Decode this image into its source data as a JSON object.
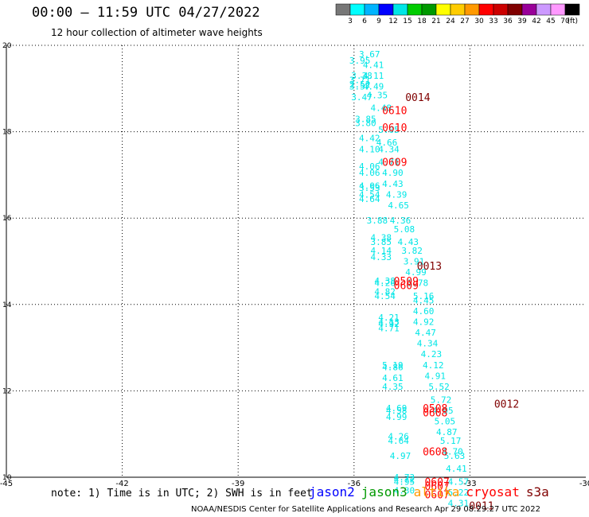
{
  "header": {
    "title": "00:00 – 11:59 UTC 04/27/2022",
    "subtitle": "12 hour collection of altimeter wave heights"
  },
  "colorbar": {
    "unit_label": "(ft)",
    "ticks": [
      "3",
      "6",
      "9",
      "12",
      "15",
      "18",
      "21",
      "24",
      "27",
      "30",
      "33",
      "36",
      "39",
      "42",
      "45",
      "70"
    ],
    "colors": [
      "#777777",
      "#00ffff",
      "#00b4ff",
      "#0000ff",
      "#00e6e6",
      "#00cc00",
      "#009900",
      "#ffff00",
      "#ffcc00",
      "#ff9900",
      "#ff0000",
      "#cc0000",
      "#800000",
      "#990099",
      "#cc99ff",
      "#ff99ff",
      "#000000"
    ]
  },
  "footer": {
    "note": "note: 1) Time is in UTC; 2) SWH is in feet",
    "credit": "NOAA/NESDIS Center for Satellite Applications and Research   Apr 29 08:29:27 UTC 2022",
    "satellites": [
      {
        "name": "jason2",
        "color": "#0000ff"
      },
      {
        "name": "jason3",
        "color": "#009900"
      },
      {
        "name": "altika",
        "color": "#ff9900"
      },
      {
        "name": "cryosat",
        "color": "#ff0000"
      },
      {
        "name": "s3a",
        "color": "#800000"
      }
    ]
  },
  "chart_data": {
    "type": "scatter",
    "x_ticks": [
      "-45",
      "-42",
      "-39",
      "-36",
      "-33",
      "-30"
    ],
    "y_ticks": [
      "10",
      "12",
      "14",
      "16",
      "18",
      "20"
    ],
    "xlim": [
      -45,
      -30
    ],
    "ylim": [
      10,
      20
    ],
    "grid": true,
    "wave_heights": [
      {
        "lon": -35.6,
        "lat": 19.8,
        "label": "3.67"
      },
      {
        "lon": -35.85,
        "lat": 19.65,
        "label": "3.95"
      },
      {
        "lon": -35.5,
        "lat": 19.55,
        "label": "4.41"
      },
      {
        "lon": -35.8,
        "lat": 19.3,
        "label": "3.38"
      },
      {
        "lon": -35.5,
        "lat": 19.3,
        "label": "4.11"
      },
      {
        "lon": -35.85,
        "lat": 19.2,
        "label": "3.71"
      },
      {
        "lon": -35.85,
        "lat": 19.1,
        "label": "2.52"
      },
      {
        "lon": -35.85,
        "lat": 19.05,
        "label": "3.57"
      },
      {
        "lon": -35.5,
        "lat": 19.05,
        "label": "4.49"
      },
      {
        "lon": -35.8,
        "lat": 18.8,
        "label": "3.47"
      },
      {
        "lon": -35.4,
        "lat": 18.85,
        "label": "4.35"
      },
      {
        "lon": -35.3,
        "lat": 18.55,
        "label": "4.48"
      },
      {
        "lon": -35.7,
        "lat": 18.3,
        "label": "3.85"
      },
      {
        "lon": -35.7,
        "lat": 18.2,
        "label": "3.80"
      },
      {
        "lon": -35.1,
        "lat": 18.05,
        "label": "5.05"
      },
      {
        "lon": -35.6,
        "lat": 17.85,
        "label": "4.42"
      },
      {
        "lon": -35.15,
        "lat": 17.75,
        "label": "4.66"
      },
      {
        "lon": -35.6,
        "lat": 17.6,
        "label": "4.10"
      },
      {
        "lon": -35.1,
        "lat": 17.6,
        "label": "4.34"
      },
      {
        "lon": -35.1,
        "lat": 17.3,
        "label": "4.71"
      },
      {
        "lon": -35.6,
        "lat": 17.2,
        "label": "4.06"
      },
      {
        "lon": -35.6,
        "lat": 17.05,
        "label": "4.06"
      },
      {
        "lon": -35.0,
        "lat": 17.05,
        "label": "4.90"
      },
      {
        "lon": -35.0,
        "lat": 16.8,
        "label": "4.43"
      },
      {
        "lon": -35.6,
        "lat": 16.75,
        "label": "4.06"
      },
      {
        "lon": -35.6,
        "lat": 16.7,
        "label": "3.53"
      },
      {
        "lon": -35.6,
        "lat": 16.55,
        "label": "4.54"
      },
      {
        "lon": -35.6,
        "lat": 16.45,
        "label": "4.64"
      },
      {
        "lon": -34.9,
        "lat": 16.55,
        "label": "4.39"
      },
      {
        "lon": -34.85,
        "lat": 16.3,
        "label": "4.65"
      },
      {
        "lon": -35.4,
        "lat": 15.95,
        "label": "3.88"
      },
      {
        "lon": -34.8,
        "lat": 15.95,
        "label": "4.36"
      },
      {
        "lon": -34.7,
        "lat": 15.75,
        "label": "5.08"
      },
      {
        "lon": -35.3,
        "lat": 15.55,
        "label": "4.38"
      },
      {
        "lon": -35.3,
        "lat": 15.45,
        "label": "3.85"
      },
      {
        "lon": -34.6,
        "lat": 15.45,
        "label": "4.43"
      },
      {
        "lon": -35.3,
        "lat": 15.25,
        "label": "4.14"
      },
      {
        "lon": -34.5,
        "lat": 15.25,
        "label": "3.82"
      },
      {
        "lon": -35.3,
        "lat": 15.1,
        "label": "4.33"
      },
      {
        "lon": -34.45,
        "lat": 15.0,
        "label": "3.91"
      },
      {
        "lon": -34.4,
        "lat": 14.75,
        "label": "4.99"
      },
      {
        "lon": -35.2,
        "lat": 14.55,
        "label": "4.38"
      },
      {
        "lon": -35.2,
        "lat": 14.5,
        "label": "4.26"
      },
      {
        "lon": -34.35,
        "lat": 14.5,
        "label": "3.78"
      },
      {
        "lon": -35.2,
        "lat": 14.3,
        "label": "4.82"
      },
      {
        "lon": -35.2,
        "lat": 14.2,
        "label": "4.54"
      },
      {
        "lon": -34.2,
        "lat": 14.2,
        "label": "5.16"
      },
      {
        "lon": -34.2,
        "lat": 14.1,
        "label": "4.45"
      },
      {
        "lon": -34.2,
        "lat": 13.85,
        "label": "4.60"
      },
      {
        "lon": -35.1,
        "lat": 13.7,
        "label": "4.21"
      },
      {
        "lon": -35.1,
        "lat": 13.6,
        "label": "4.13"
      },
      {
        "lon": -35.1,
        "lat": 13.55,
        "label": "4.92"
      },
      {
        "lon": -35.1,
        "lat": 13.45,
        "label": "4.71"
      },
      {
        "lon": -34.2,
        "lat": 13.6,
        "label": "4.92"
      },
      {
        "lon": -34.15,
        "lat": 13.35,
        "label": "4.47"
      },
      {
        "lon": -34.1,
        "lat": 13.1,
        "label": "4.34"
      },
      {
        "lon": -34.0,
        "lat": 12.85,
        "label": "4.23"
      },
      {
        "lon": -35.0,
        "lat": 12.6,
        "label": "5.19"
      },
      {
        "lon": -35.0,
        "lat": 12.55,
        "label": "4.86"
      },
      {
        "lon": -33.95,
        "lat": 12.6,
        "label": "4.12"
      },
      {
        "lon": -35.0,
        "lat": 12.3,
        "label": "4.61"
      },
      {
        "lon": -33.9,
        "lat": 12.35,
        "label": "4.91"
      },
      {
        "lon": -35.0,
        "lat": 12.1,
        "label": "4.35"
      },
      {
        "lon": -33.8,
        "lat": 12.1,
        "label": "5.52"
      },
      {
        "lon": -33.75,
        "lat": 11.8,
        "label": "5.72"
      },
      {
        "lon": -34.9,
        "lat": 11.6,
        "label": "4.69"
      },
      {
        "lon": -34.9,
        "lat": 11.55,
        "label": "4.58"
      },
      {
        "lon": -33.7,
        "lat": 11.55,
        "label": "4.95"
      },
      {
        "lon": -34.9,
        "lat": 11.4,
        "label": "4.99"
      },
      {
        "lon": -33.65,
        "lat": 11.3,
        "label": "5.05"
      },
      {
        "lon": -33.6,
        "lat": 11.05,
        "label": "4.87"
      },
      {
        "lon": -34.85,
        "lat": 10.95,
        "label": "4.26"
      },
      {
        "lon": -34.85,
        "lat": 10.85,
        "label": "4.64"
      },
      {
        "lon": -33.5,
        "lat": 10.85,
        "label": "5.17"
      },
      {
        "lon": -33.45,
        "lat": 10.6,
        "label": "4.70"
      },
      {
        "lon": -34.8,
        "lat": 10.5,
        "label": "4.97"
      },
      {
        "lon": -33.4,
        "lat": 10.5,
        "label": "5.63"
      },
      {
        "lon": -34.7,
        "lat": 10.0,
        "label": "4.73"
      },
      {
        "lon": -33.35,
        "lat": 10.2,
        "label": "4.41"
      },
      {
        "lon": -34.7,
        "lat": 9.95,
        "label": "4.72"
      },
      {
        "lon": -34.7,
        "lat": 9.9,
        "label": "4.95"
      },
      {
        "lon": -33.3,
        "lat": 9.9,
        "label": "4.57"
      },
      {
        "lon": -34.7,
        "lat": 9.7,
        "label": "4.30"
      },
      {
        "lon": -33.3,
        "lat": 9.65,
        "label": "5.22"
      },
      {
        "lon": -33.3,
        "lat": 9.4,
        "label": "4.31"
      }
    ],
    "pass_times": [
      {
        "lon": -34.35,
        "lat": 18.8,
        "label": "0014",
        "color": "#800000"
      },
      {
        "lon": -34.95,
        "lat": 18.5,
        "label": "0610",
        "color": "#ff0000"
      },
      {
        "lon": -34.95,
        "lat": 18.1,
        "label": "0610",
        "color": "#ff0000"
      },
      {
        "lon": -34.95,
        "lat": 17.3,
        "label": "0609",
        "color": "#ff0000"
      },
      {
        "lon": -34.05,
        "lat": 14.9,
        "label": "0013",
        "color": "#800000"
      },
      {
        "lon": -34.65,
        "lat": 14.55,
        "label": "0509",
        "color": "#ff0000"
      },
      {
        "lon": -34.65,
        "lat": 14.45,
        "label": "0609",
        "color": "#ff0000"
      },
      {
        "lon": -32.05,
        "lat": 11.7,
        "label": "0012",
        "color": "#800000"
      },
      {
        "lon": -33.9,
        "lat": 11.6,
        "label": "0508",
        "color": "#ff0000"
      },
      {
        "lon": -33.9,
        "lat": 11.5,
        "label": "0608",
        "color": "#ff0000"
      },
      {
        "lon": -33.9,
        "lat": 10.6,
        "label": "0608",
        "color": "#ff0000"
      },
      {
        "lon": -33.85,
        "lat": 9.9,
        "label": "0607",
        "color": "#ff0000"
      },
      {
        "lon": -33.85,
        "lat": 9.8,
        "label": "0607",
        "color": "#ff0000"
      },
      {
        "lon": -33.85,
        "lat": 9.6,
        "label": "0607",
        "color": "#ff0000"
      },
      {
        "lon": -32.7,
        "lat": 9.35,
        "label": "0011",
        "color": "#800000"
      }
    ]
  }
}
